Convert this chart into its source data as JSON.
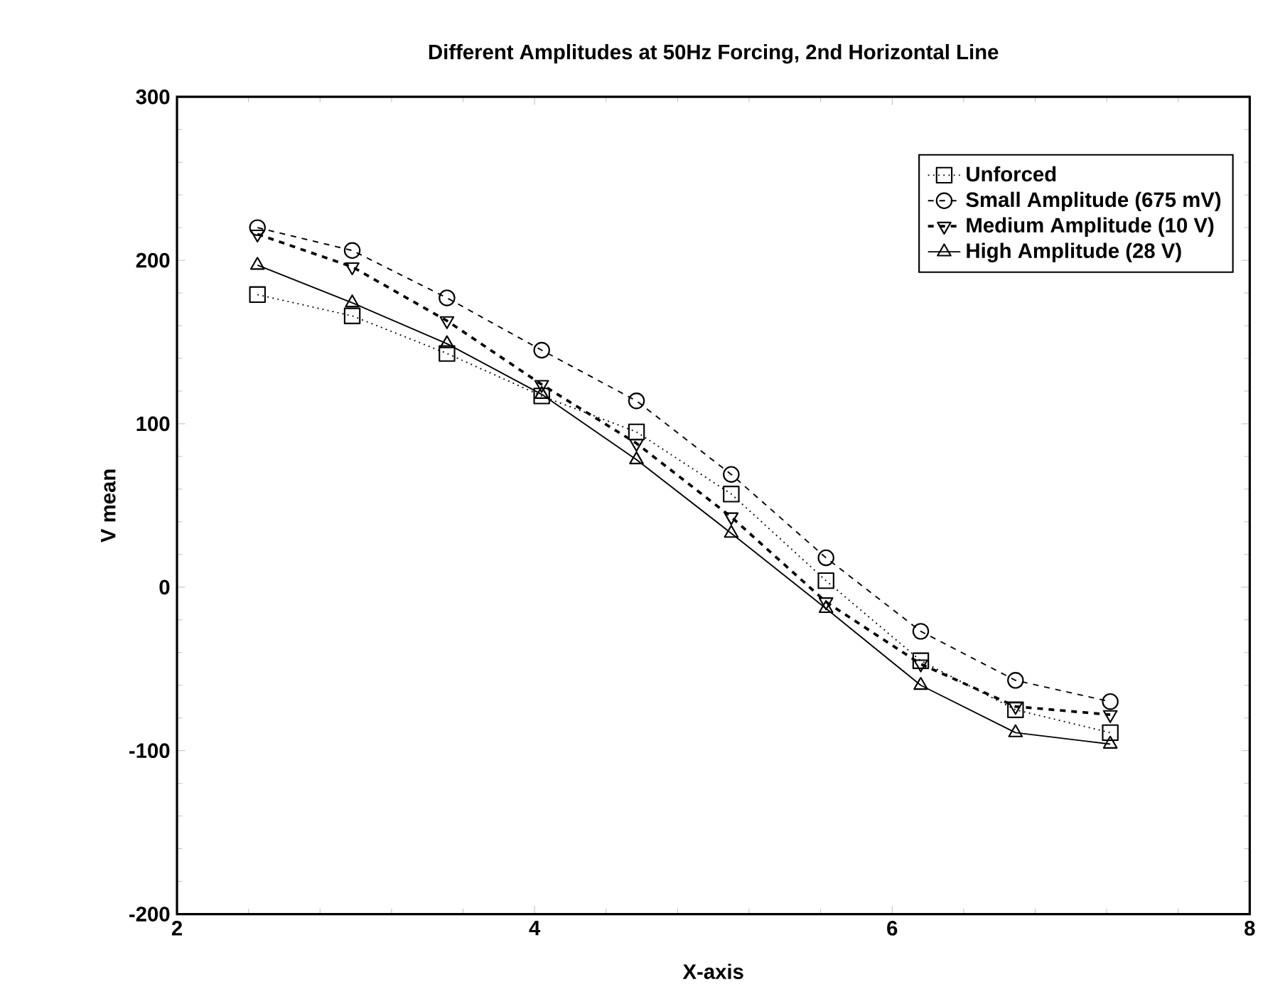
{
  "chart_data": {
    "type": "line",
    "title": "Different Amplitudes at 50Hz Forcing, 2nd Horizontal Line",
    "xlabel": "X-axis",
    "ylabel": "V mean",
    "x": [
      2.45,
      2.98,
      3.51,
      4.04,
      4.57,
      5.1,
      5.63,
      6.16,
      6.69,
      7.22
    ],
    "series": [
      {
        "name": "Unforced",
        "color": "#000000",
        "marker": "square",
        "line_style": "dotted",
        "values": [
          179,
          166,
          143,
          117,
          95,
          57,
          4,
          -45,
          -75,
          -89
        ]
      },
      {
        "name": "Small Amplitude (675 mV)",
        "color": "#000000",
        "marker": "circle",
        "line_style": "dashed",
        "values": [
          220,
          206,
          177,
          145,
          114,
          69,
          18,
          -27,
          -57,
          -70
        ]
      },
      {
        "name": "Medium Amplitude (10 V)",
        "color": "#000000",
        "marker": "triangle-down",
        "line_style": "dashed",
        "values": [
          216,
          196,
          163,
          124,
          88,
          43,
          -9,
          -47,
          -73,
          -78
        ]
      },
      {
        "name": "High Amplitude (28 V)",
        "color": "#000000",
        "marker": "triangle",
        "line_style": "solid",
        "values": [
          197,
          174,
          149,
          118,
          78,
          33,
          -13,
          -60,
          -89,
          -96
        ]
      }
    ],
    "xlim": [
      2,
      8
    ],
    "ylim": [
      -200,
      300
    ],
    "xticks": [
      2,
      4,
      6,
      8
    ],
    "yticks": [
      -200,
      -100,
      0,
      100,
      200,
      300
    ],
    "grid": false,
    "legend": "top right"
  }
}
